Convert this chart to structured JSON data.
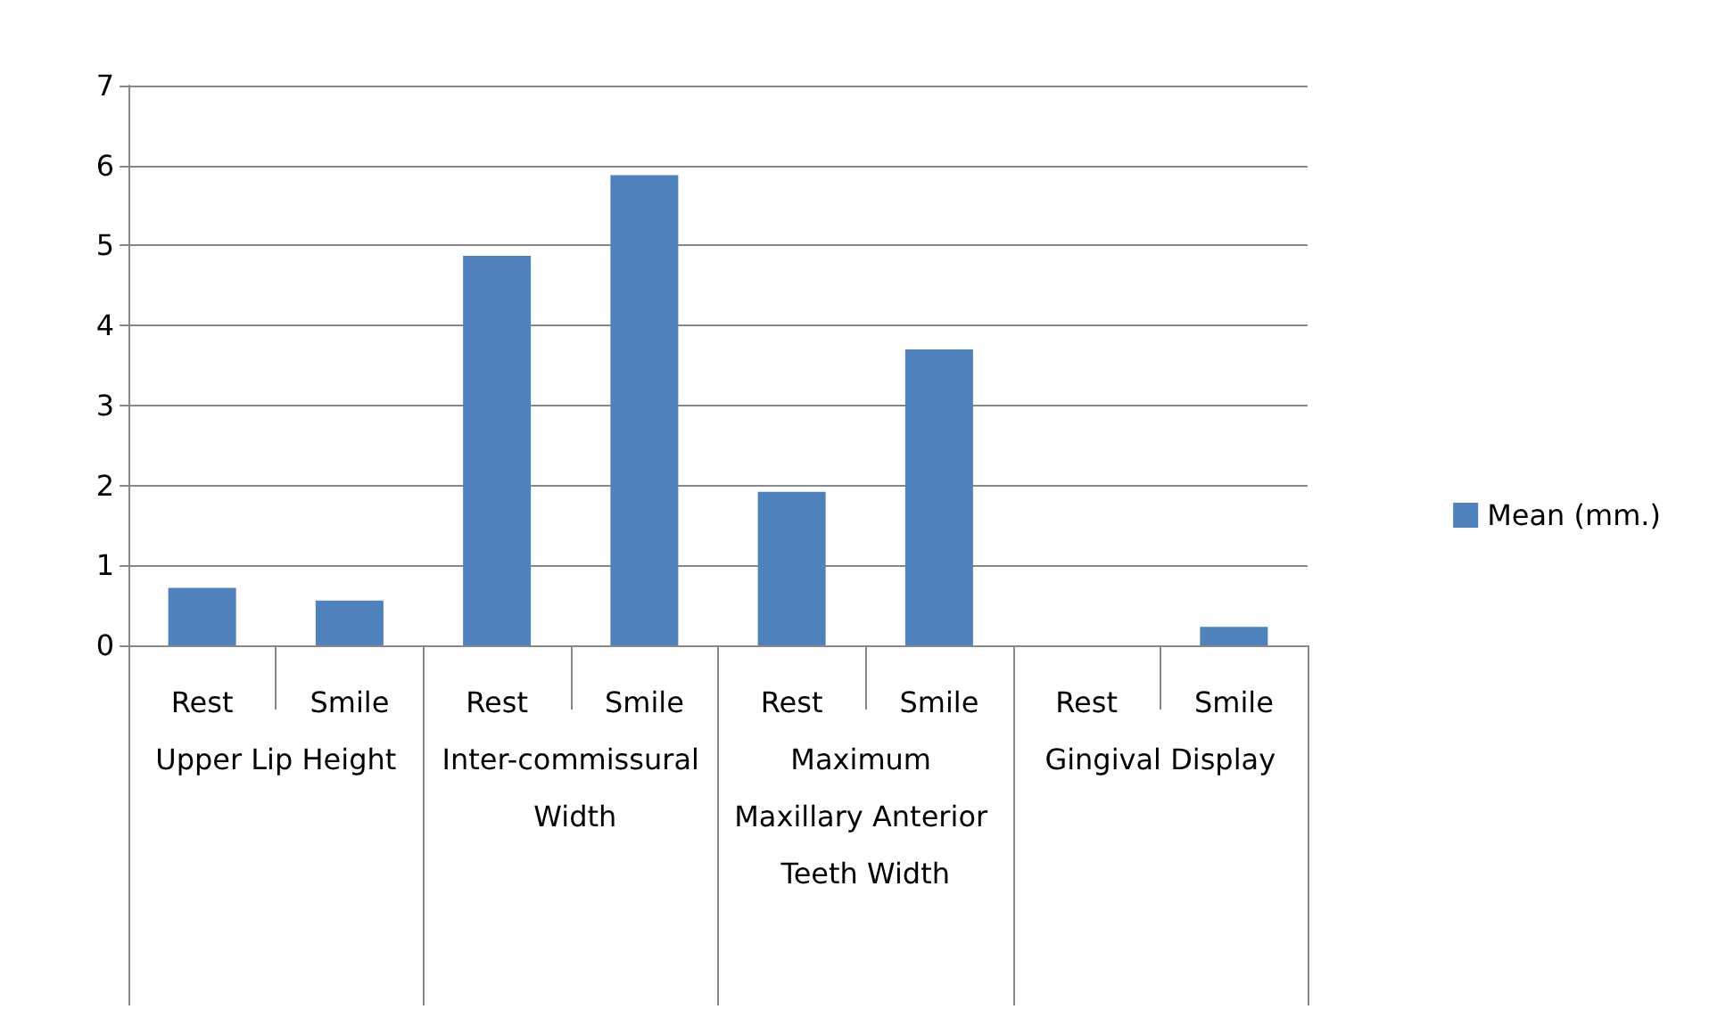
{
  "chart_data": {
    "type": "bar",
    "categories": [
      "Rest",
      "Smile",
      "Rest",
      "Smile",
      "Rest",
      "Smile",
      "Rest",
      "Smile"
    ],
    "series": [
      {
        "name": "Mean (mm.)",
        "color": "#4f81bd",
        "values": [
          0.72,
          0.56,
          4.87,
          5.88,
          1.92,
          3.7,
          0,
          0.23
        ]
      }
    ],
    "annotations": [
      "Upper Lip Height",
      "Inter-commissural Width",
      "Maximum Maxillary Anterior Teeth Width",
      "Gingival Display"
    ],
    "ylim": [
      0,
      7
    ],
    "yticks": [
      0,
      1,
      2,
      3,
      4,
      5,
      6,
      7
    ],
    "grid": "y",
    "legend": "right"
  }
}
